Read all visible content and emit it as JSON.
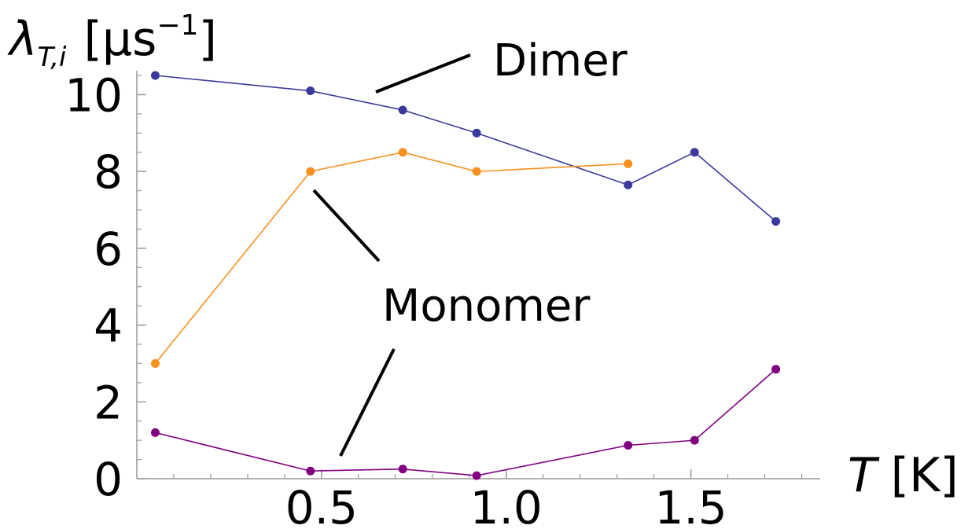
{
  "chart_data": {
    "type": "line",
    "xlabel": "T [K]",
    "ylabel": "λT,i [μs−1]",
    "ylabel_parts": {
      "symbol": "λ",
      "subscript": "T,i",
      "unit_open": "[μs",
      "exponent": "−1",
      "unit_close": "]"
    },
    "xlabel_parts": {
      "symbol": "T",
      "unit": "[K]"
    },
    "xlim": [
      0.0,
      1.85
    ],
    "ylim": [
      0,
      10.5
    ],
    "x_ticks": [
      {
        "value": 0.5,
        "label": "0.5"
      },
      {
        "value": 1.0,
        "label": "1.0"
      },
      {
        "value": 1.5,
        "label": "1.5"
      }
    ],
    "x_minor_ticks": [
      0.1,
      0.2,
      0.3,
      0.4,
      0.6,
      0.7,
      0.8,
      0.9,
      1.1,
      1.2,
      1.3,
      1.4,
      1.6,
      1.7,
      1.8
    ],
    "y_ticks": [
      {
        "value": 0,
        "label": "0"
      },
      {
        "value": 2,
        "label": "2"
      },
      {
        "value": 4,
        "label": "4"
      },
      {
        "value": 6,
        "label": "6"
      },
      {
        "value": 8,
        "label": "8"
      },
      {
        "value": 10,
        "label": "10"
      }
    ],
    "y_minor_ticks": [
      0.5,
      1,
      1.5,
      2.5,
      3,
      3.5,
      4.5,
      5,
      5.5,
      6.5,
      7,
      7.5,
      8.5,
      9,
      9.5,
      10.5
    ],
    "grid": false,
    "series": [
      {
        "color": "#3a3a9c",
        "x": [
          0.05,
          0.47,
          0.72,
          0.92,
          1.33,
          1.51,
          1.73
        ],
        "y": [
          10.5,
          10.1,
          9.6,
          9.0,
          7.65,
          8.5,
          6.7
        ]
      },
      {
        "color": "#f7901e",
        "x": [
          0.05,
          0.47,
          0.72,
          0.92,
          1.33
        ],
        "y": [
          3.0,
          8.0,
          8.5,
          8.0,
          8.2
        ]
      },
      {
        "color": "#800080",
        "x": [
          0.05,
          0.47,
          0.72,
          0.92,
          1.33,
          1.51,
          1.73
        ],
        "y": [
          1.2,
          0.2,
          0.25,
          0.08,
          0.87,
          1.0,
          2.85
        ]
      }
    ],
    "annotations": [
      {
        "text": "Dimer",
        "points_to": "series-0"
      },
      {
        "text": "Monomer",
        "points_to": "series-1, series-2"
      }
    ]
  }
}
